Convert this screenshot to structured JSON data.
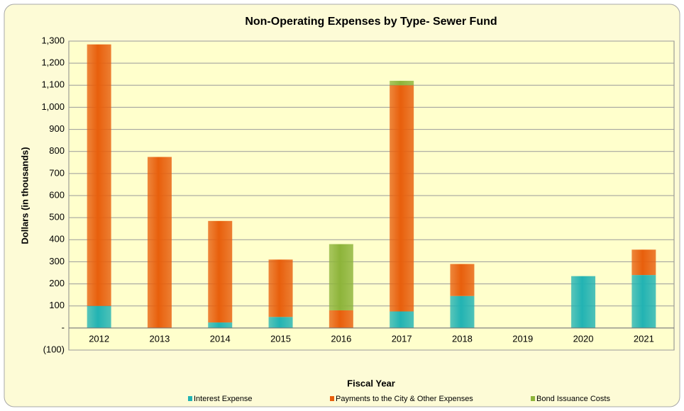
{
  "chart_data": {
    "type": "stacked_bar",
    "title": "Non-Operating Expenses by Type- Sewer Fund",
    "x_label": "Fiscal Year",
    "y_label": "Dollars (in thousands)",
    "categories": [
      "2012",
      "2013",
      "2014",
      "2015",
      "2016",
      "2017",
      "2018",
      "2019",
      "2020",
      "2021"
    ],
    "series": [
      {
        "name": "Interest Expense",
        "color": "#22b3b3",
        "values": [
          100,
          0,
          25,
          50,
          0,
          75,
          145,
          0,
          235,
          240
        ]
      },
      {
        "name": "Payments to the City & Other Expenses",
        "color": "#e85f0c",
        "values": [
          1185,
          775,
          460,
          260,
          80,
          1025,
          145,
          0,
          0,
          115
        ]
      },
      {
        "name": "Bond Issuance Costs",
        "color": "#8db43a",
        "values": [
          0,
          0,
          0,
          0,
          300,
          20,
          0,
          0,
          0,
          0
        ]
      }
    ],
    "ylim": [
      -100,
      1300
    ],
    "yticks": [
      {
        "value": -100,
        "label": "(100)"
      },
      {
        "value": 0,
        "label": "-"
      },
      100,
      200,
      300,
      400,
      500,
      600,
      700,
      800,
      900,
      {
        "value": 1000,
        "label": "1,000"
      },
      {
        "value": 1100,
        "label": "1,100"
      },
      {
        "value": 1200,
        "label": "1,200"
      },
      {
        "value": 1300,
        "label": "1,300"
      }
    ],
    "grid": true,
    "legend": "bottom"
  }
}
